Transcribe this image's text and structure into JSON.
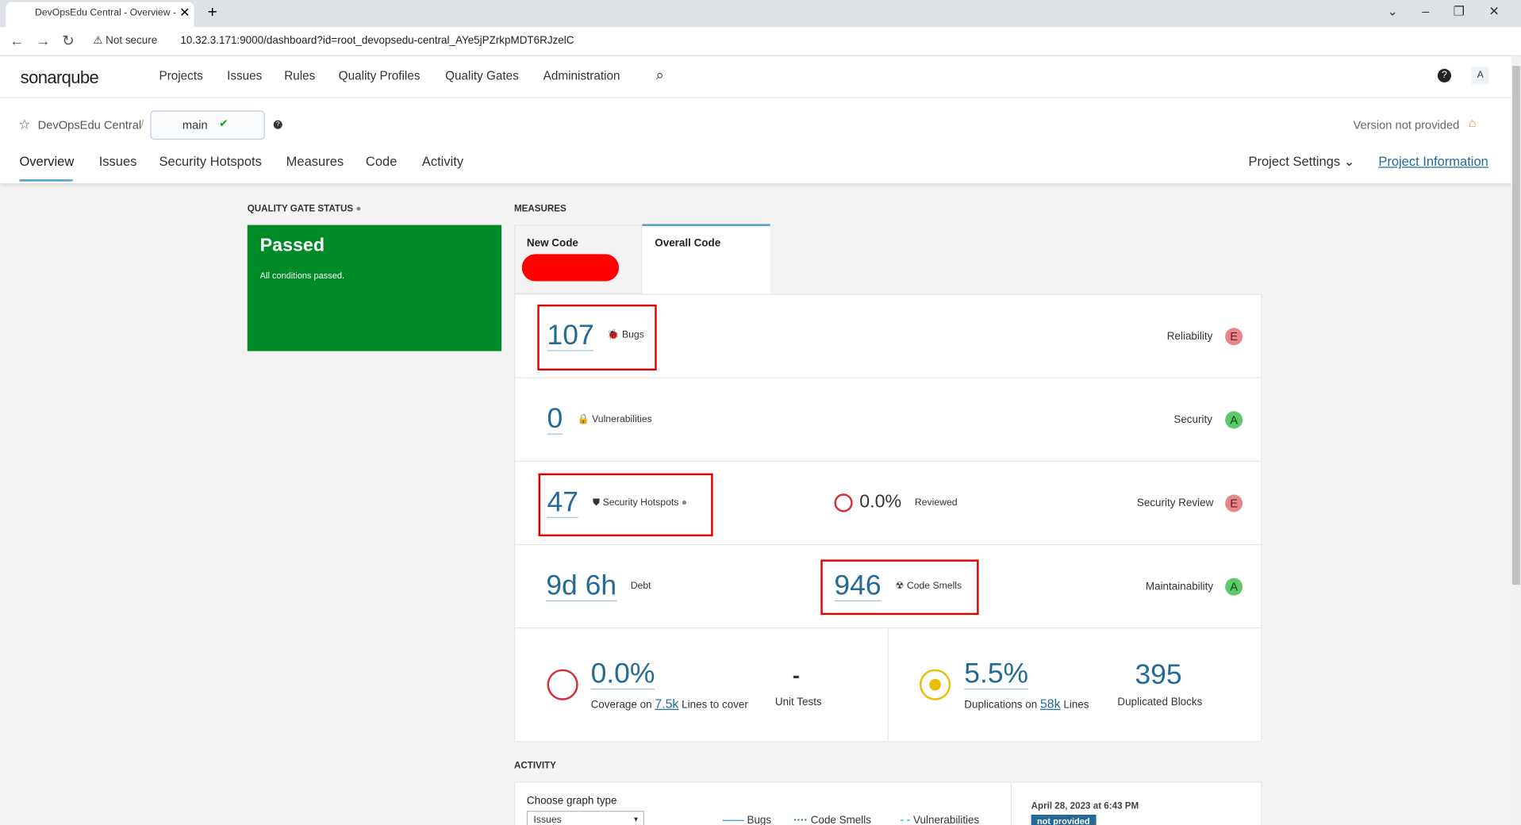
{
  "browser": {
    "tab_title": "DevOpsEdu Central - Overview -",
    "not_secure": "Not secure",
    "url": "10.32.3.171:9000/dashboard?id=root_devopsedu-central_AYe5jPZrkpMDT6RJzelC"
  },
  "nav": {
    "logo": "sonarqube",
    "items": [
      "Projects",
      "Issues",
      "Rules",
      "Quality Profiles",
      "Quality Gates",
      "Administration"
    ],
    "avatar": "A"
  },
  "project": {
    "name": "DevOpsEdu Central",
    "branch": "main",
    "version": "Version not provided"
  },
  "tabs": {
    "items": [
      "Overview",
      "Issues",
      "Security Hotspots",
      "Measures",
      "Code",
      "Activity"
    ],
    "settings": "Project Settings",
    "info": "Project Information"
  },
  "quality_gate": {
    "heading": "QUALITY GATE STATUS",
    "status": "Passed",
    "message": "All conditions passed."
  },
  "measures": {
    "heading": "MEASURES",
    "tabs": [
      "New Code",
      "Overall Code"
    ],
    "bugs": {
      "value": "107",
      "label": "Bugs",
      "rating_label": "Reliability",
      "rating": "E"
    },
    "vulnerabilities": {
      "value": "0",
      "label": "Vulnerabilities",
      "rating_label": "Security",
      "rating": "A"
    },
    "hotspots": {
      "value": "47",
      "label": "Security Hotspots",
      "reviewed": "0.0%",
      "reviewed_label": "Reviewed",
      "rating_label": "Security Review",
      "rating": "E"
    },
    "debt": {
      "value": "9d 6h",
      "label": "Debt",
      "smells": "946",
      "smells_label": "Code Smells",
      "rating_label": "Maintainability",
      "rating": "A"
    },
    "coverage": {
      "value": "0.0%",
      "prefix": "Coverage on",
      "lines": "7.5k",
      "suffix": "Lines to cover",
      "unit_tests": "-",
      "unit_tests_label": "Unit Tests"
    },
    "duplications": {
      "value": "5.5%",
      "prefix": "Duplications on",
      "lines": "58k",
      "suffix": "Lines",
      "blocks": "395",
      "blocks_label": "Duplicated Blocks"
    }
  },
  "activity": {
    "heading": "ACTIVITY",
    "graph_label": "Choose graph type",
    "select": "Issues",
    "legend": [
      "Bugs",
      "Code Smells",
      "Vulnerabilities"
    ],
    "date": "April 28, 2023 at 6:43 PM",
    "badge": "not provided"
  }
}
